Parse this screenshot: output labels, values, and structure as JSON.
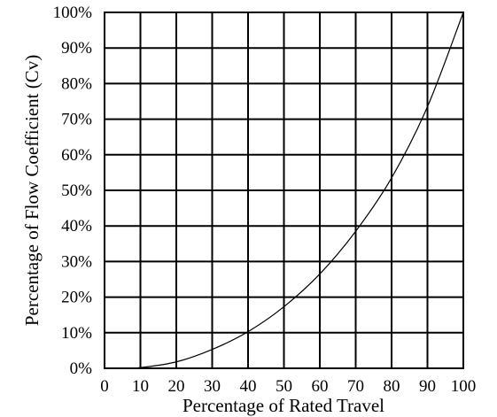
{
  "chart_data": {
    "type": "line",
    "title": "",
    "xlabel": "Percentage of Rated Travel",
    "ylabel": "Percentage of Flow Coefficient (Cv)",
    "xlim": [
      0,
      100
    ],
    "ylim": [
      0,
      100
    ],
    "grid": true,
    "x_ticks": [
      "0",
      "10",
      "20",
      "30",
      "40",
      "50",
      "60",
      "70",
      "80",
      "90",
      "100"
    ],
    "y_ticks": [
      "0%",
      "10%",
      "20%",
      "30%",
      "40%",
      "50%",
      "60%",
      "70%",
      "80%",
      "90%",
      "100%"
    ],
    "series": [
      {
        "x": [
          0,
          5,
          10,
          20,
          30,
          40,
          50,
          60,
          70,
          80,
          90,
          100
        ],
        "y": [
          0,
          0,
          0.2,
          1.8,
          5.3,
          10.3,
          17.3,
          26.5,
          38.5,
          53.5,
          73.5,
          100
        ],
        "color": "#000000"
      }
    ]
  }
}
